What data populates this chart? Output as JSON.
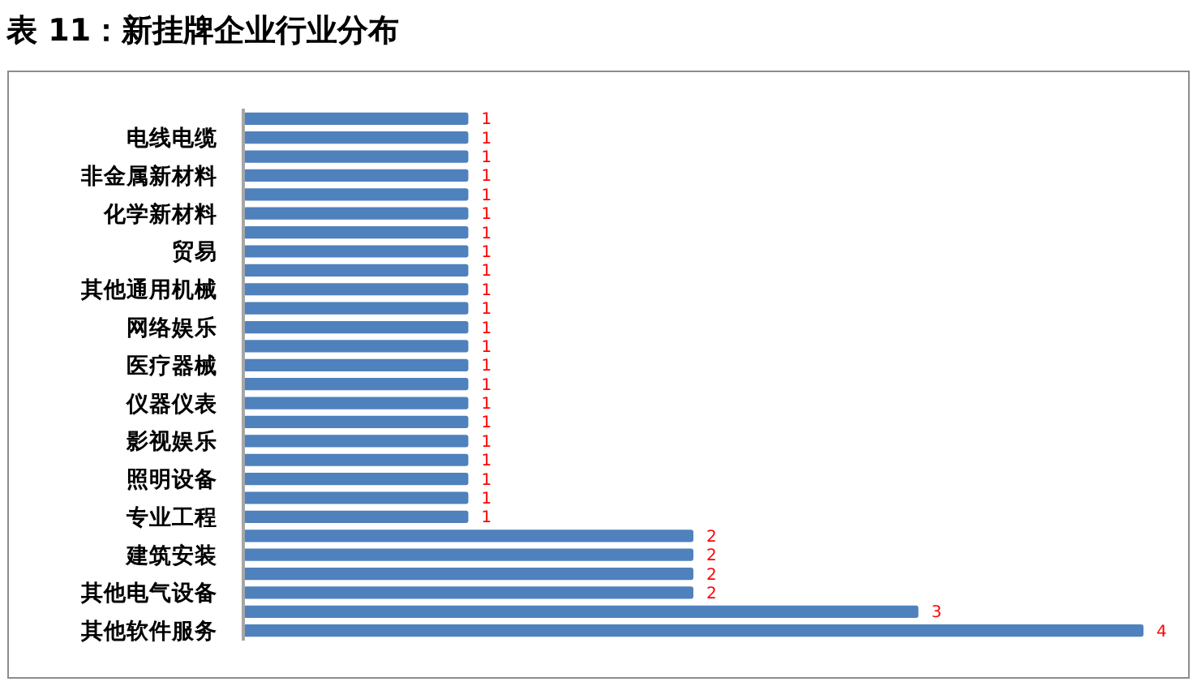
{
  "chart_data": {
    "type": "bar",
    "orientation": "horizontal",
    "title": "表 11：新挂牌企业行业分布",
    "categories": [
      null,
      "电线电缆",
      null,
      "非金属新材料",
      null,
      "化学新材料",
      null,
      "贸易",
      null,
      "其他通用机械",
      null,
      "网络娱乐",
      null,
      "医疗器械",
      null,
      "仪器仪表",
      null,
      "影视娱乐",
      null,
      "照明设备",
      null,
      "专业工程",
      null,
      "建筑安装",
      null,
      "其他电气设备",
      null,
      "其他软件服务"
    ],
    "values": [
      1,
      1,
      1,
      1,
      1,
      1,
      1,
      1,
      1,
      1,
      1,
      1,
      1,
      1,
      1,
      1,
      1,
      1,
      1,
      1,
      1,
      1,
      2,
      2,
      2,
      2,
      3,
      4
    ],
    "color": "#4f81bd",
    "data_labels": true
  }
}
